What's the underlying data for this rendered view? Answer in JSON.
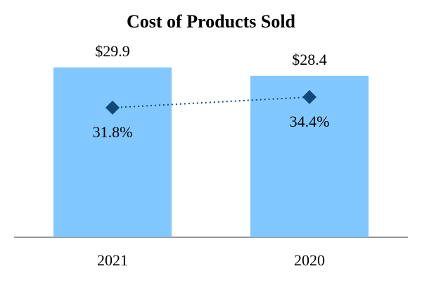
{
  "chart_data": {
    "type": "bar",
    "title": "Cost of Products Sold",
    "categories": [
      "2021",
      "2020"
    ],
    "series": [
      {
        "type": "bar",
        "color": "#80c8ff",
        "values": [
          29.9,
          28.4
        ],
        "value_labels": [
          "$29.9",
          "$28.4"
        ]
      },
      {
        "type": "line",
        "axis": "y2",
        "color": "#0d4a7a",
        "marker": "diamond",
        "linestyle": "dotted",
        "values": [
          31.8,
          34.4
        ],
        "value_labels": [
          "31.8%",
          "34.4%"
        ]
      }
    ],
    "ylim": [
      0,
      37.3
    ],
    "y2lim": [
      0,
      52
    ]
  }
}
